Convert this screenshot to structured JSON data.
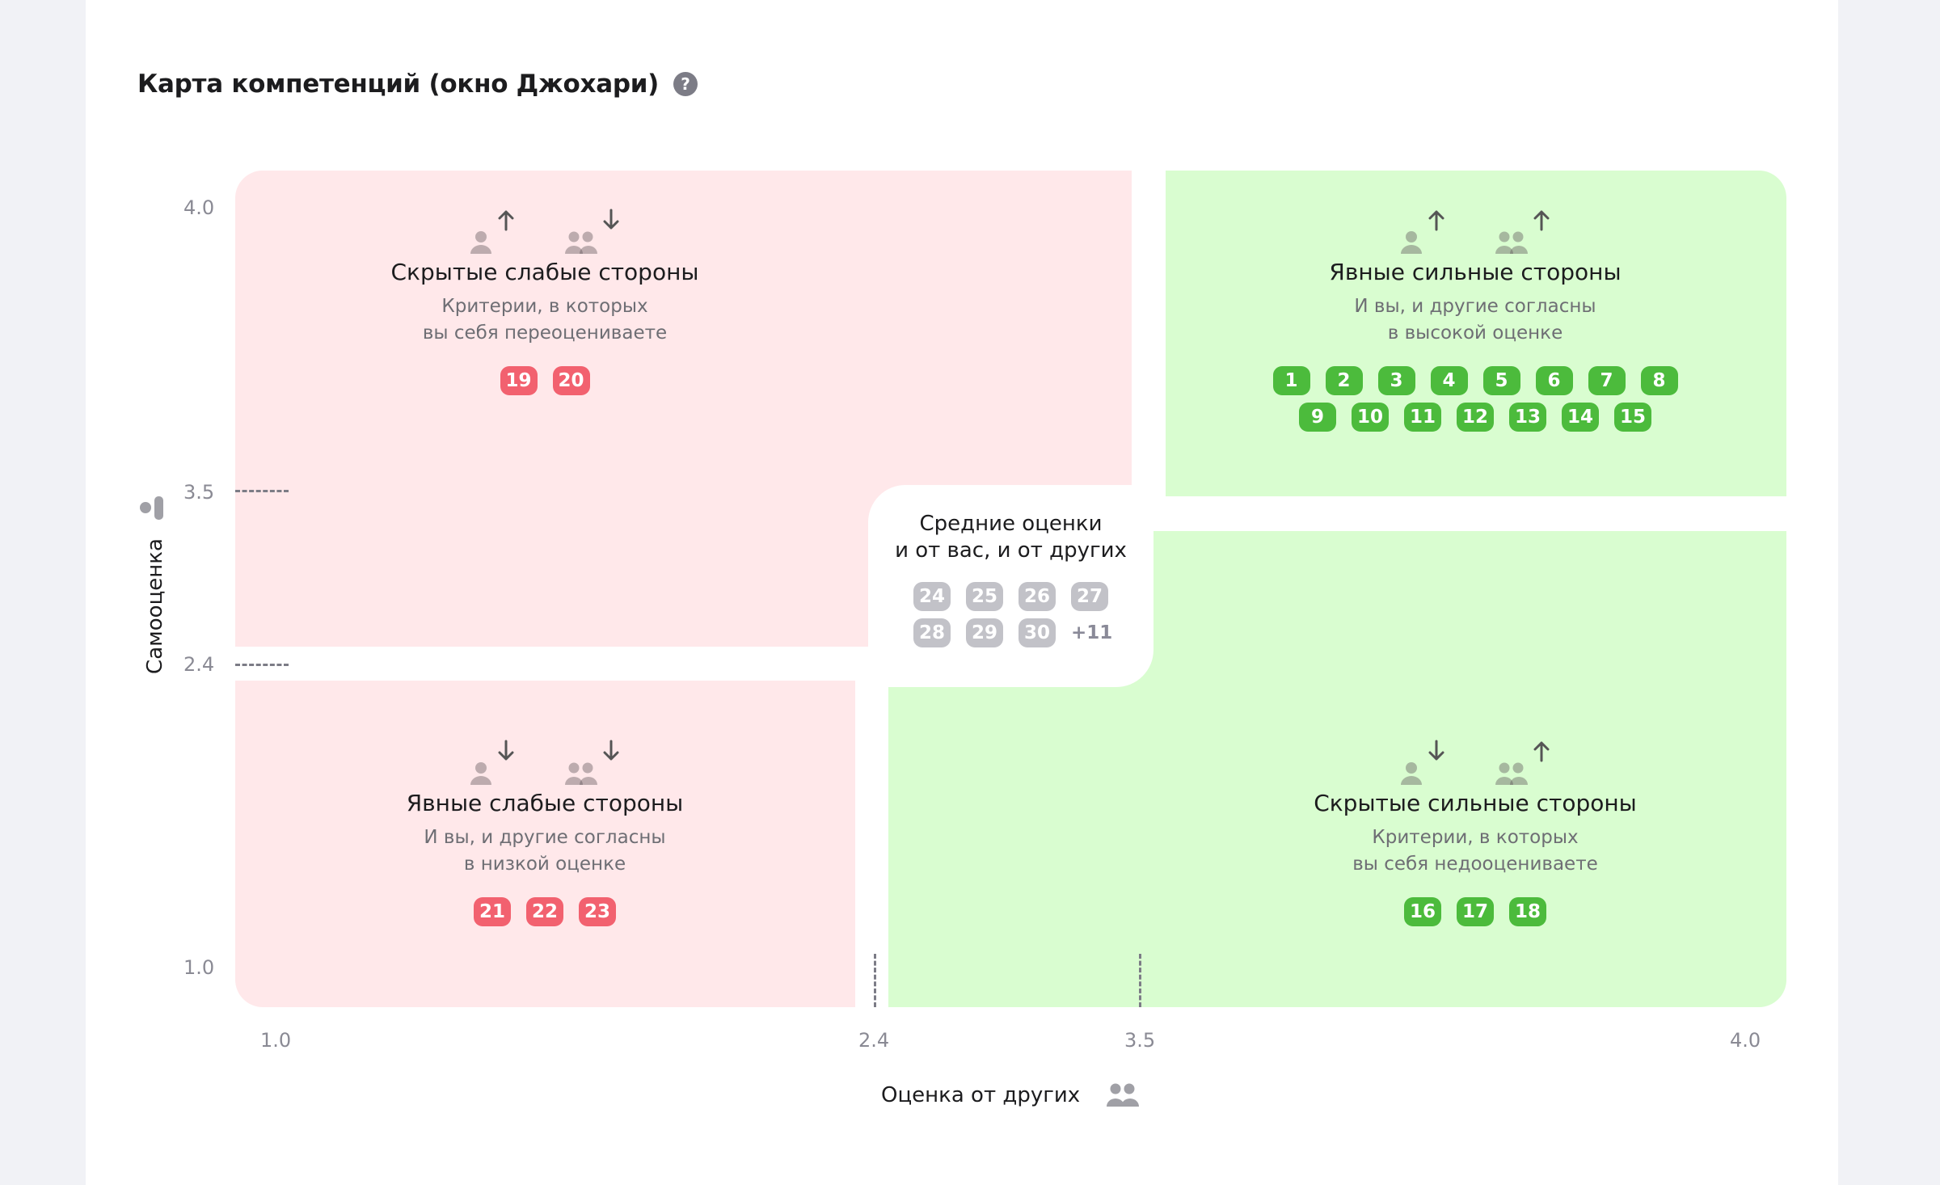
{
  "header": {
    "title": "Карта компетенций (окно Джохари)",
    "help_icon": "?"
  },
  "colors": {
    "pink_bg": "#ffe8ea",
    "green_bg": "#d9fdd0",
    "red_badge": "#f2616f",
    "green_badge": "#4cbb3c",
    "grey_badge": "#c2c2c8"
  },
  "quadrants": [
    {
      "id": "hidden-weaknesses",
      "title": "Скрытые слабые стороны",
      "desc": [
        "Критерии, в которых",
        "вы себя переоцениваете"
      ],
      "self_arrow": "up",
      "others_arrow": "down",
      "badge_color": "red",
      "badges": [
        "19",
        "20"
      ]
    },
    {
      "id": "obvious-strengths",
      "title": "Явные сильные стороны",
      "desc": [
        "И вы, и другие согласны",
        "в высокой оценке"
      ],
      "self_arrow": "up",
      "others_arrow": "up",
      "badge_color": "green",
      "badges": [
        "1",
        "2",
        "3",
        "4",
        "5",
        "6",
        "7",
        "8",
        "9",
        "10",
        "11",
        "12",
        "13",
        "14",
        "15"
      ]
    },
    {
      "id": "obvious-weaknesses",
      "title": "Явные слабые стороны",
      "desc": [
        "И вы, и другие согласны",
        "в низкой оценке"
      ],
      "self_arrow": "down",
      "others_arrow": "down",
      "badge_color": "red",
      "badges": [
        "21",
        "22",
        "23"
      ]
    },
    {
      "id": "hidden-strengths",
      "title": "Скрытые сильные стороны",
      "desc": [
        "Критерии, в которых",
        "вы себя недооцениваете"
      ],
      "self_arrow": "down",
      "others_arrow": "up",
      "badge_color": "green",
      "badges": [
        "16",
        "17",
        "18"
      ]
    }
  ],
  "middle": {
    "title": [
      "Средние оценки",
      "и от вас, и от других"
    ],
    "badges": [
      "24",
      "25",
      "26",
      "27",
      "28",
      "29",
      "30"
    ],
    "more": "+11"
  },
  "axes": {
    "y_label": "Самооценка",
    "y_ticks": [
      "4.0",
      "3.5",
      "2.4",
      "1.0"
    ],
    "x_label": "Оценка от других",
    "x_ticks": [
      "1.0",
      "2.4",
      "3.5",
      "4.0"
    ]
  }
}
